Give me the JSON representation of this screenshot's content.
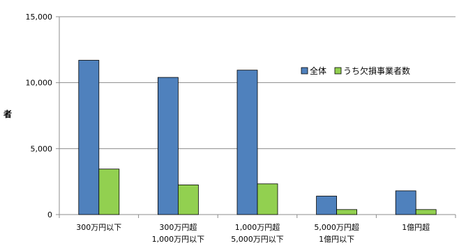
{
  "chart_data": {
    "type": "bar",
    "title": "",
    "xlabel": "",
    "ylabel": "者",
    "ylim": [
      0,
      15000
    ],
    "yticks": [
      0,
      5000,
      10000,
      15000
    ],
    "ytick_labels": [
      "0",
      "5,000",
      "10,000",
      "15,000"
    ],
    "categories": [
      [
        "300万円以下"
      ],
      [
        "300万円超",
        "1,000万円以下"
      ],
      [
        "1,000万円超",
        "5,000万円以下"
      ],
      [
        "5,000万円超",
        "1億円以下"
      ],
      [
        "1億円超"
      ]
    ],
    "series": [
      {
        "name": "全体",
        "color": "#4f81bd",
        "values": [
          11700,
          10400,
          10950,
          1400,
          1800
        ]
      },
      {
        "name": "うち欠損事業者数",
        "color": "#92d050",
        "values": [
          3450,
          2250,
          2330,
          380,
          380
        ]
      }
    ],
    "grid": true,
    "legend_position": "upper-right-inside"
  }
}
